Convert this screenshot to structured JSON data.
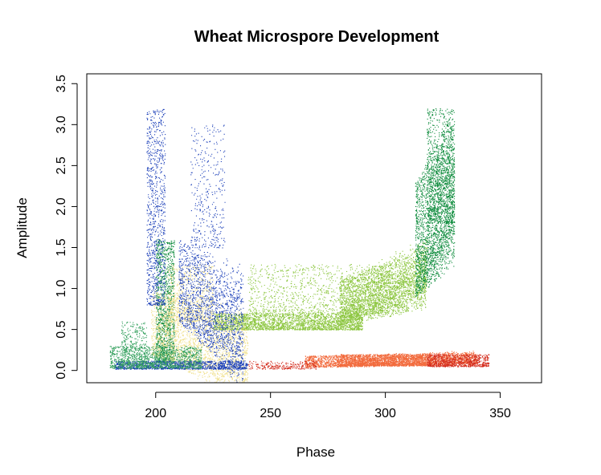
{
  "chart_data": {
    "type": "scatter",
    "title": "Wheat Microspore Development",
    "xlabel": "Phase",
    "ylabel": "Amplitude",
    "xlim": [
      170,
      368
    ],
    "ylim": [
      -0.15,
      3.62
    ],
    "xticks": [
      {
        "value": 200,
        "label": "200"
      },
      {
        "value": 250,
        "label": "250"
      },
      {
        "value": 300,
        "label": "300"
      },
      {
        "value": 350,
        "label": "350"
      }
    ],
    "yticks": [
      {
        "value": 0.0,
        "label": "0.0"
      },
      {
        "value": 0.5,
        "label": "0.5"
      },
      {
        "value": 1.0,
        "label": "1.0"
      },
      {
        "value": 1.5,
        "label": "1.5"
      },
      {
        "value": 2.0,
        "label": "2.0"
      },
      {
        "value": 2.5,
        "label": "2.5"
      },
      {
        "value": 3.0,
        "label": "3.0"
      },
      {
        "value": 3.5,
        "label": "3.5"
      }
    ],
    "grid": false,
    "legend": "none",
    "series": [
      {
        "color": "#F26A3C",
        "clusters": [
          {
            "x": [
              265,
              340
            ],
            "y": [
              0.04,
              0.18
            ],
            "n": 2600,
            "trend": 0.0006
          },
          {
            "x": [
              280,
              320
            ],
            "y": [
              0.06,
              0.2
            ],
            "n": 1200,
            "trend": 0.0
          }
        ]
      },
      {
        "color": "#D42E1F",
        "clusters": [
          {
            "x": [
              318,
              345
            ],
            "y": [
              0.05,
              0.2
            ],
            "n": 800,
            "trend": 0.0
          },
          {
            "x": [
              240,
              270
            ],
            "y": [
              0.02,
              0.12
            ],
            "n": 250,
            "trend": 0.0
          }
        ]
      },
      {
        "color": "#8CC63F",
        "clusters": [
          {
            "x": [
              225,
              290
            ],
            "y": [
              0.5,
              0.7
            ],
            "n": 2500,
            "trend": 0.0
          },
          {
            "x": [
              280,
              318
            ],
            "y": [
              0.55,
              1.1
            ],
            "n": 2800,
            "trend": 0.01
          },
          {
            "x": [
              240,
              310
            ],
            "y": [
              0.7,
              1.3
            ],
            "n": 1200,
            "trend": 0.0
          }
        ]
      },
      {
        "color": "#0B8A3A",
        "clusters": [
          {
            "x": [
              313,
              330
            ],
            "y": [
              0.9,
              2.3
            ],
            "n": 2200,
            "trend": 0.04
          },
          {
            "x": [
              318,
              330
            ],
            "y": [
              1.8,
              3.2
            ],
            "n": 800,
            "trend": 0.0
          },
          {
            "x": [
              200,
              208
            ],
            "y": [
              0.1,
              1.6
            ],
            "n": 1300,
            "trend": 0.0
          }
        ]
      },
      {
        "color": "#F0E08C",
        "clusters": [
          {
            "x": [
              198,
              240
            ],
            "y": [
              0.2,
              1.0
            ],
            "n": 2400,
            "trend": -0.01
          },
          {
            "x": [
              205,
              225
            ],
            "y": [
              0.6,
              1.3
            ],
            "n": 600,
            "trend": 0.0
          }
        ]
      },
      {
        "color": "#1A3EB8",
        "clusters": [
          {
            "x": [
              196,
              204
            ],
            "y": [
              0.8,
              3.2
            ],
            "n": 900,
            "trend": 0.0
          },
          {
            "x": [
              210,
              238
            ],
            "y": [
              0.6,
              1.6
            ],
            "n": 1700,
            "trend": -0.02
          },
          {
            "x": [
              215,
              230
            ],
            "y": [
              1.5,
              3.0
            ],
            "n": 350,
            "trend": 0.0
          },
          {
            "x": [
              182,
              240
            ],
            "y": [
              0.02,
              0.12
            ],
            "n": 1200,
            "trend": 0.0
          }
        ]
      },
      {
        "color": "#2F9E5A",
        "clusters": [
          {
            "x": [
              180,
              220
            ],
            "y": [
              0.03,
              0.3
            ],
            "n": 1200,
            "trend": 0.0
          },
          {
            "x": [
              185,
              196
            ],
            "y": [
              0.05,
              0.6
            ],
            "n": 300,
            "trend": 0.0
          }
        ]
      }
    ]
  }
}
